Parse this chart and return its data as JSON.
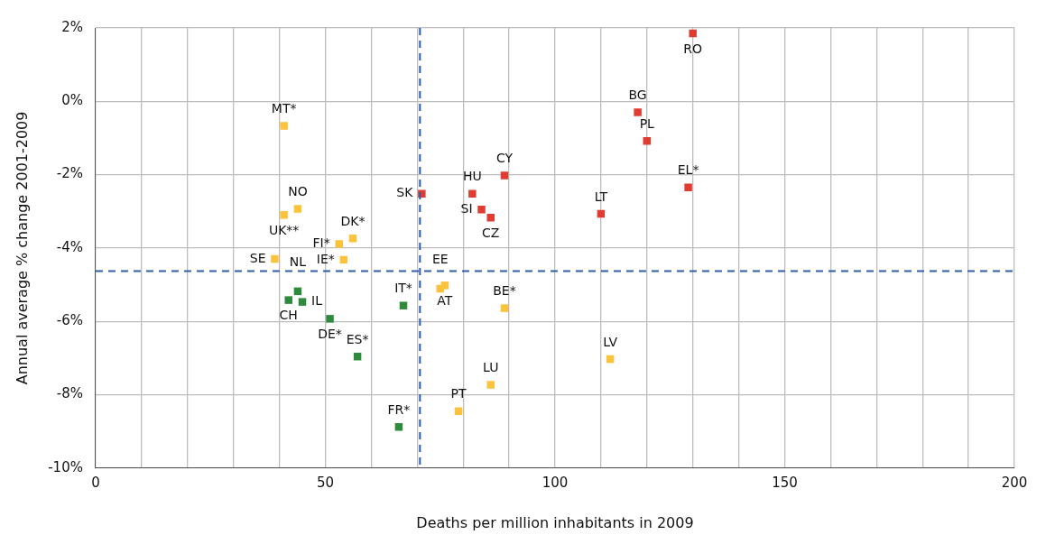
{
  "chart_data": {
    "type": "scatter",
    "xlabel": "Deaths per million inhabitants in 2009",
    "ylabel": "Annual average % change 2001-2009",
    "xlim": [
      0,
      200
    ],
    "ylim": [
      -10,
      2
    ],
    "xticks": [
      0,
      {
        "value": 10,
        "label": null
      },
      {
        "value": 20,
        "label": null
      },
      {
        "value": 30,
        "label": null
      },
      {
        "value": 40,
        "label": null
      },
      50,
      {
        "value": 60,
        "label": null
      },
      {
        "value": 70,
        "label": null
      },
      {
        "value": 80,
        "label": null
      },
      {
        "value": 90,
        "label": null
      },
      100,
      {
        "value": 110,
        "label": null
      },
      {
        "value": 120,
        "label": null
      },
      {
        "value": 130,
        "label": null
      },
      {
        "value": 140,
        "label": null
      },
      150,
      {
        "value": 160,
        "label": null
      },
      {
        "value": 170,
        "label": null
      },
      {
        "value": 180,
        "label": null
      },
      {
        "value": 190,
        "label": null
      },
      200
    ],
    "yticks": [
      {
        "value": -10,
        "label": "-10%"
      },
      {
        "value": -8,
        "label": "-8%"
      },
      {
        "value": -6,
        "label": "-6%"
      },
      {
        "value": -4,
        "label": "-4%"
      },
      {
        "value": -2,
        "label": "-2%"
      },
      {
        "value": 0,
        "label": "0%"
      },
      {
        "value": 2,
        "label": "2%"
      }
    ],
    "grid": true,
    "legend": false,
    "marker": "square",
    "series": [
      {
        "color": "#e03c31",
        "x": [
          130,
          118,
          120,
          129,
          110,
          89,
          71,
          82,
          84,
          86
        ],
        "values": [
          1.85,
          -0.3,
          -1.08,
          -2.35,
          -3.07,
          -2.02,
          -2.52,
          -2.52,
          -2.95,
          -3.17
        ]
      },
      {
        "color": "#fbc23c",
        "x": [
          41,
          44,
          41,
          56,
          53,
          54,
          39,
          76,
          75,
          89,
          112,
          86,
          79
        ],
        "values": [
          -0.67,
          -2.93,
          -3.1,
          -3.74,
          -3.89,
          -4.32,
          -4.3,
          -5.02,
          -5.11,
          -5.64,
          -7.03,
          -7.73,
          -8.45
        ]
      },
      {
        "color": "#2e8b3e",
        "x": [
          44,
          42,
          45,
          67,
          51,
          57,
          66
        ],
        "values": [
          -5.18,
          -5.42,
          -5.47,
          -5.57,
          -5.93,
          -6.96,
          -8.88
        ]
      }
    ],
    "ref_lines": [
      {
        "axis": "x",
        "value": 70.6,
        "color": "#2e5fa8",
        "line_style": "dashed"
      },
      {
        "axis": "y",
        "value": -4.63,
        "color": "#2e5fa8",
        "line_style": "dashed"
      }
    ],
    "annotations": [
      {
        "text": "RO",
        "x": 130,
        "y": 1.85
      },
      {
        "text": "BG",
        "x": 118,
        "y": -0.3
      },
      {
        "text": "PL",
        "x": 120,
        "y": -1.08
      },
      {
        "text": "EL*",
        "x": 129,
        "y": -2.35
      },
      {
        "text": "LT",
        "x": 110,
        "y": -3.07
      },
      {
        "text": "CY",
        "x": 89,
        "y": -2.02
      },
      {
        "text": "SK",
        "x": 71,
        "y": -2.52
      },
      {
        "text": "HU",
        "x": 82,
        "y": -2.52
      },
      {
        "text": "SI",
        "x": 84,
        "y": -2.95
      },
      {
        "text": "CZ",
        "x": 86,
        "y": -3.17
      },
      {
        "text": "MT*",
        "x": 41,
        "y": -0.67
      },
      {
        "text": "NO",
        "x": 44,
        "y": -2.93
      },
      {
        "text": "UK**",
        "x": 41,
        "y": -3.1
      },
      {
        "text": "DK*",
        "x": 56,
        "y": -3.74
      },
      {
        "text": "FI*",
        "x": 53,
        "y": -3.89
      },
      {
        "text": "IE*",
        "x": 54,
        "y": -4.32
      },
      {
        "text": "SE",
        "x": 39,
        "y": -4.3
      },
      {
        "text": "AT",
        "x": 76,
        "y": -5.02
      },
      {
        "text": "EE",
        "x": 75,
        "y": -5.11
      },
      {
        "text": "BE*",
        "x": 89,
        "y": -5.64
      },
      {
        "text": "LV",
        "x": 112,
        "y": -7.03
      },
      {
        "text": "LU",
        "x": 86,
        "y": -7.73
      },
      {
        "text": "PT",
        "x": 79,
        "y": -8.45
      },
      {
        "text": "NL",
        "x": 44,
        "y": -5.18
      },
      {
        "text": "CH",
        "x": 42,
        "y": -5.42
      },
      {
        "text": "IL",
        "x": 45,
        "y": -5.47
      },
      {
        "text": "IT*",
        "x": 67,
        "y": -5.57
      },
      {
        "text": "DE*",
        "x": 51,
        "y": -5.93
      },
      {
        "text": "ES*",
        "x": 57,
        "y": -6.96
      },
      {
        "text": "FR*",
        "x": 66,
        "y": -8.88
      }
    ]
  }
}
